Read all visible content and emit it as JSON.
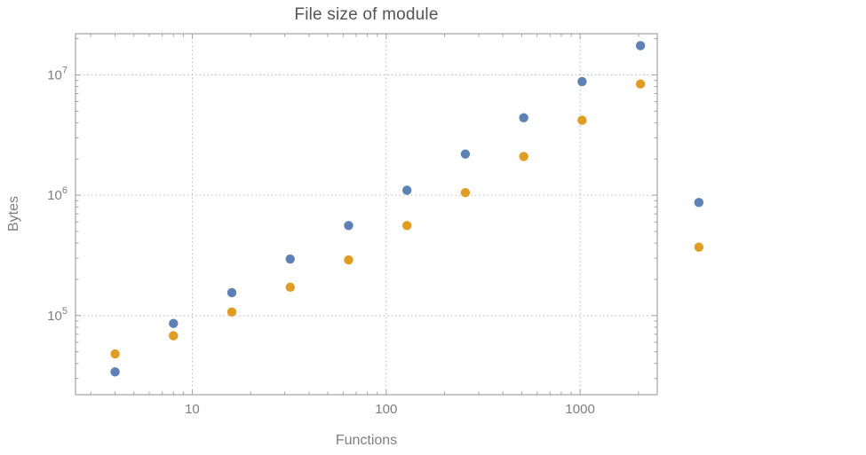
{
  "chart_data": {
    "type": "scatter",
    "title": "File size of module",
    "xlabel": "Functions",
    "ylabel": "Bytes",
    "xscale": "log",
    "yscale": "log",
    "xlim": [
      2.5,
      2500
    ],
    "ylim": [
      22000,
      22000000
    ],
    "x_ticks": [
      10,
      100,
      1000
    ],
    "y_ticks": [
      100000,
      1000000,
      10000000
    ],
    "grid": "dotted decade gridlines, framed plot with inward ticks on all four sides",
    "legend": "none",
    "x": [
      4,
      8,
      16,
      32,
      64,
      128,
      256,
      512,
      1024,
      2048,
      4096
    ],
    "series": [
      {
        "name": "blue-series",
        "color": "#5e81b5",
        "values": [
          34000,
          86000,
          155000,
          295000,
          560000,
          1100000,
          2200000,
          4400000,
          8800000,
          17500000,
          870000
        ]
      },
      {
        "name": "orange-series",
        "color": "#e19c24",
        "values": [
          48000,
          68000,
          107000,
          172000,
          290000,
          560000,
          1050000,
          2100000,
          4200000,
          8400000,
          370000
        ]
      }
    ],
    "colors": {
      "frame": "#a3a3a3",
      "grid": "#bdbdbd",
      "tick_label": "#7e7e7e",
      "title": "#545454"
    },
    "layout_note": "the two right-most points of each series are plotted beyond the right edge of the frame"
  }
}
